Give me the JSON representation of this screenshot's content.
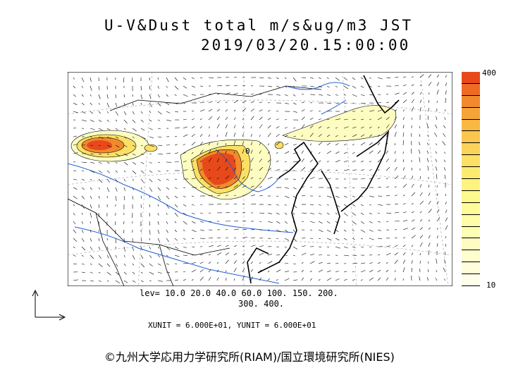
{
  "title": {
    "line1": "U-V&Dust total m/s&ug/m3 JST",
    "line2": "2019/03/20.15:00:00"
  },
  "colorbar": {
    "max_label": "400",
    "min_label": "10",
    "colors": [
      "#e8491b",
      "#ee6b23",
      "#f28a2d",
      "#f5a437",
      "#f8b841",
      "#f9c64e",
      "#fbd35a",
      "#fce065",
      "#fdeb71",
      "#fef37f",
      "#fef98c",
      "#fefb99",
      "#fefca6",
      "#fefdb4",
      "#fefdc1",
      "#fefece",
      "#fefedb",
      "#fffee8"
    ]
  },
  "levels": {
    "line1": "lev= 10.0 20.0 40.0 60.0 100. 150. 200.",
    "line2": "300. 400."
  },
  "units": "XUNIT = 6.000E+01, YUNIT = 6.000E+01",
  "copyright": "©九州大学応用力学研究所(RIAM)/国立環境研究所(NIES)",
  "map_label": "0"
}
